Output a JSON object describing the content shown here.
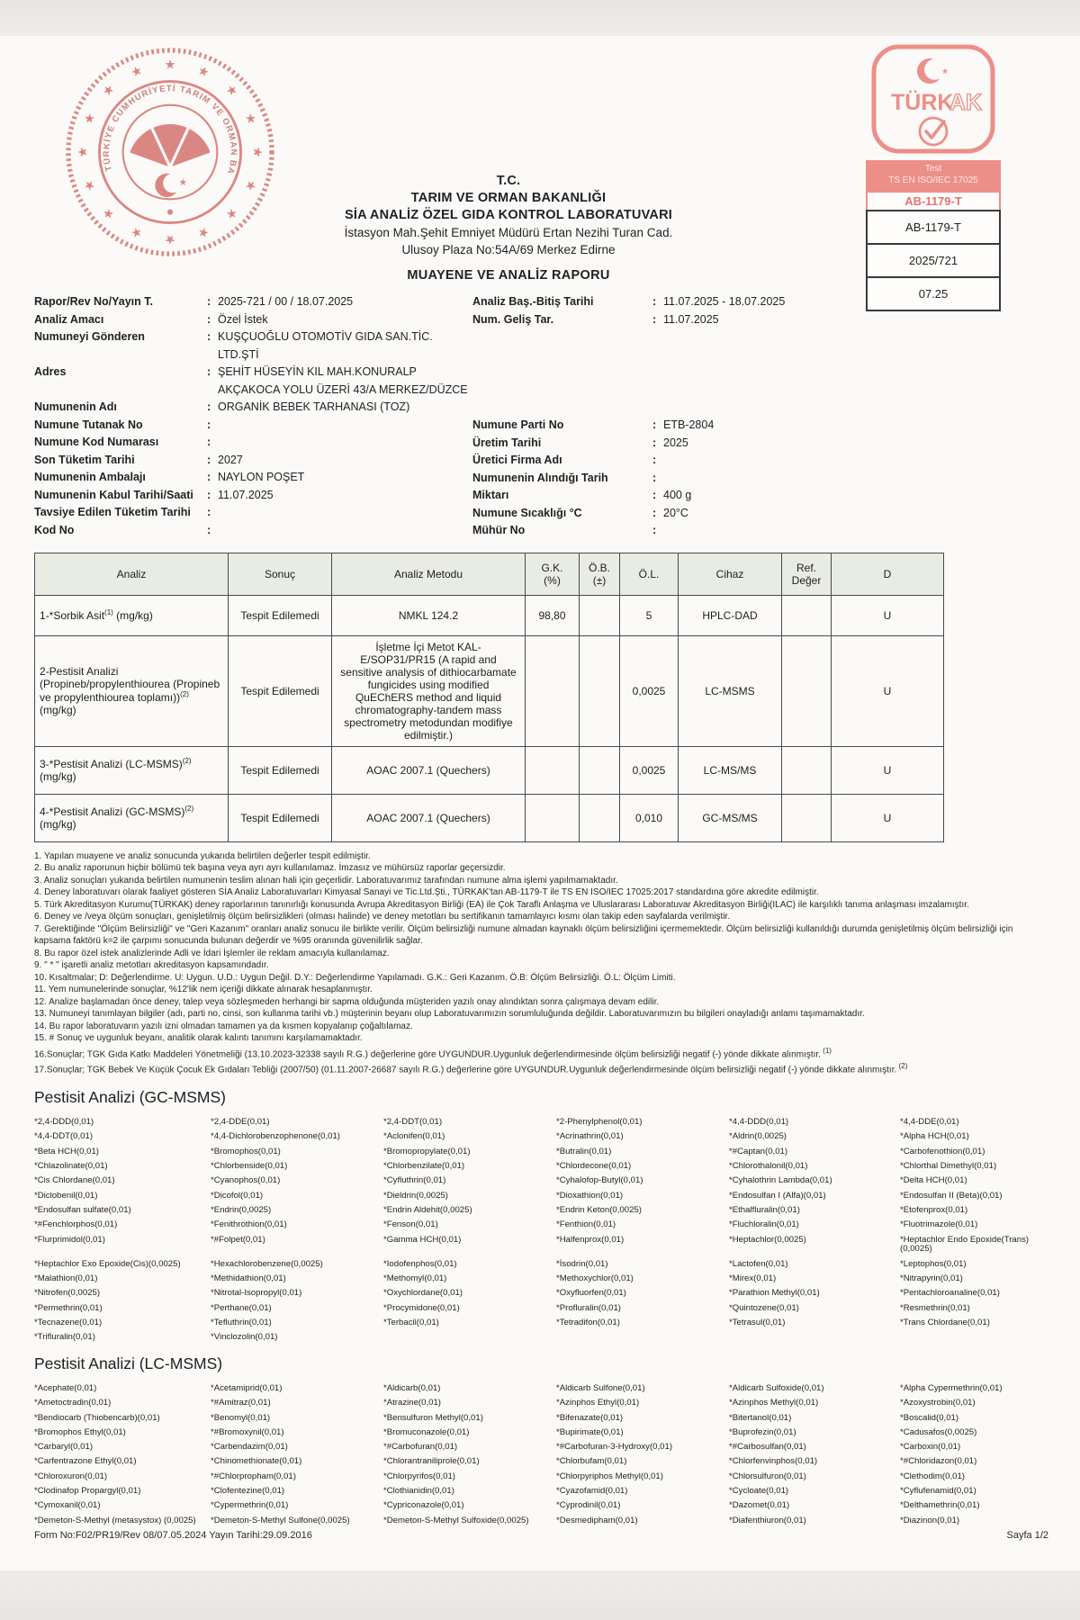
{
  "colors": {
    "stamp_red": "#da8783",
    "turkak_red": "#ec8f88",
    "text": "#222222",
    "table_header_bg": "#e9ece3"
  },
  "header": {
    "tc": "T.C.",
    "ministry": "TARIM VE ORMAN BAKANLIĞI",
    "laboratory": "SİA ANALİZ ÖZEL GIDA KONTROL LABORATUVARI",
    "address_line1": "İstasyon Mah.Şehit Emniyet Müdürü Ertan Nezihi Turan Cad.",
    "address_line2": "Ulusoy Plaza No:54A/69 Merkez Edirne",
    "report_title": "MUAYENE VE ANALİZ RAPORU",
    "emblem_text": "TÜRKİYE CUMHURİYETİ TARIM VE ORMAN BAKANLIĞI"
  },
  "stamp": {
    "wordmark_solid": "TÜRK",
    "wordmark_outline": "AK",
    "test_label": "Test",
    "standard_label": "TS EN ISO/IEC 17025",
    "accreditation_no": "AB-1179-T",
    "box_accreditation_no": "AB-1179-T",
    "box_report_no": "2025/721",
    "box_code": "07.25"
  },
  "info_left": [
    {
      "label": "Rapor/Rev No/Yayın T.",
      "value": "2025-721 / 00 / 18.07.2025"
    },
    {
      "label": "Analiz Amacı",
      "value": "Özel İstek"
    },
    {
      "label": "Numuneyi Gönderen",
      "value": "KUŞÇUOĞLU OTOMOTİV GIDA SAN.TİC. LTD.ŞTİ"
    },
    {
      "label": "Adres",
      "value": "ŞEHİT HÜSEYİN KIL MAH.KONURALP AKÇAKOCA YOLU ÜZERİ 43/A MERKEZ/DÜZCE"
    },
    {
      "label": "Numunenin Adı",
      "value": "ORGANİK BEBEK TARHANASI (TOZ)"
    },
    {
      "label": "Numune Tutanak No",
      "value": ""
    },
    {
      "label": "Numune Kod Numarası",
      "value": ""
    },
    {
      "label": "Son Tüketim Tarihi",
      "value": "2027"
    },
    {
      "label": "Numunenin Ambalajı",
      "value": "NAYLON POŞET"
    },
    {
      "label": "Numunenin Kabul Tarihi/Saati",
      "value": "11.07.2025"
    },
    {
      "label": "Tavsiye Edilen Tüketim Tarihi",
      "value": ""
    },
    {
      "label": "Kod No",
      "value": ""
    }
  ],
  "info_right_top": [
    {
      "label": "Analiz Baş.-Bitiş Tarihi",
      "value": "11.07.2025 - 18.07.2025"
    },
    {
      "label": "Num. Geliş Tar.",
      "value": "11.07.2025"
    }
  ],
  "info_right_bottom": [
    {
      "label": "Numune Parti No",
      "value": "ETB-2804"
    },
    {
      "label": "Üretim Tarihi",
      "value": "2025"
    },
    {
      "label": "Üretici Firma Adı",
      "value": ""
    },
    {
      "label": "Numunenin Alındığı Tarih",
      "value": ""
    },
    {
      "label": "Miktarı",
      "value": "400 g"
    },
    {
      "label": "Numune Sıcaklığı °C",
      "value": "20°C"
    },
    {
      "label": "Mühür No",
      "value": ""
    }
  ],
  "results_table": {
    "headers": [
      "Analiz",
      "Sonuç",
      "Analiz Metodu",
      "G.K.\n(%)",
      "Ö.B.(±)",
      "Ö.L.",
      "Cihaz",
      "Ref.\nDeğer",
      "D"
    ],
    "rows": [
      {
        "name": "1-*Sorbik Asit",
        "sup": "(1)",
        "unit": "(mg/kg)",
        "sonuc": "Tespit Edilemedi",
        "metot": "NMKL 124.2",
        "gk": "98,80",
        "ob": "",
        "ol": "5",
        "cihaz": "HPLC-DAD",
        "ref": "",
        "d": "U",
        "cls": "r1"
      },
      {
        "name": "2-Pestisit Analizi (Propineb/propylenthiourea (Propineb ve propylenthiourea toplamı))",
        "sup": "(2)",
        "unit": "(mg/kg)",
        "sonuc": "Tespit Edilemedi",
        "metot": "İşletme İçi Metot KAL-E/SOP31/PR15 (A rapid and sensitive analysis of dithiocarbamate fungicides using modified QuEChERS method and liquid chromatography-tandem mass spectrometry metodundan modifiye edilmiştir.)",
        "gk": "",
        "ob": "",
        "ol": "0,0025",
        "cihaz": "LC-MSMS",
        "ref": "",
        "d": "U",
        "cls": "r2"
      },
      {
        "name": "3-*Pestisit Analizi (LC-MSMS)",
        "sup": "(2)",
        "unit": "(mg/kg)",
        "sonuc": "Tespit Edilemedi",
        "metot": "AOAC 2007.1 (Quechers)",
        "gk": "",
        "ob": "",
        "ol": "0,0025",
        "cihaz": "LC-MS/MS",
        "ref": "",
        "d": "U",
        "cls": "r3"
      },
      {
        "name": "4-*Pestisit Analizi (GC-MSMS)",
        "sup": "(2)",
        "unit": "(mg/kg)",
        "sonuc": "Tespit Edilemedi",
        "metot": "AOAC 2007.1 (Quechers)",
        "gk": "",
        "ob": "",
        "ol": "0,010",
        "cihaz": "GC-MS/MS",
        "ref": "",
        "d": "U",
        "cls": "r4"
      }
    ]
  },
  "notes": [
    {
      "text": "1. Yapılan muayene ve analiz sonucunda yukarıda belirtilen değerler tespit edilmiştir.",
      "sup": ""
    },
    {
      "text": "2. Bu analiz raporunun hiçbir bölümü tek başına veya ayrı ayrı kullanılamaz. İmzasız ve mühürsüz raporlar geçersizdir.",
      "sup": ""
    },
    {
      "text": "3. Analiz sonuçları yukarıda belirtilen numunenin teslim alınan hali için geçerlidir. Laboratuvarımız tarafından numune alma işlemi yapılmamaktadır.",
      "sup": ""
    },
    {
      "text": "4. Deney laboratuvarı olarak faaliyet gösteren SİA Analiz Laboratuvarları Kimyasal Sanayi ve Tic.Ltd.Şti., TÜRKAK'tan AB-1179-T ile TS EN ISO/IEC 17025:2017 standardına göre akredite edilmiştir.",
      "sup": ""
    },
    {
      "text": "5. Türk Akreditasyon Kurumu(TÜRKAK) deney raporlarının tanınırlığı konusunda Avrupa Akreditasyon Birliği (EA) ile Çok Taraflı Anlaşma ve Uluslararası Laboratuvar Akreditasyon Birliği(ILAC) ile karşılıklı tanıma anlaşması imzalamıştır.",
      "sup": ""
    },
    {
      "text": "6. Deney ve /veya ölçüm sonuçları, genişletilmiş ölçüm belirsizlikleri (olması halinde) ve deney metotları bu sertifikanın tamamlayıcı kısmı olan takip eden sayfalarda verilmiştir.",
      "sup": ""
    },
    {
      "text": "7. Gerektiğinde \"Ölçüm Belirsizliği\" ve \"Geri Kazanım\" oranları analiz sonucu ile birlikte verilir. Ölçüm belirsizliği numune almadan kaynaklı ölçüm belirsizliğini içermemektedir. Ölçüm belirsizliği kullanıldığı durumda genişletilmiş ölçüm belirsizliği için kapsama faktörü k=2 ile çarpımı sonucunda bulunan değerdir ve %95 oranında güvenilirlik sağlar.",
      "sup": ""
    },
    {
      "text": "8. Bu rapor özel istek analizlerinde Adli ve İdari İşlemler ile reklam amacıyla kullanılamaz.",
      "sup": ""
    },
    {
      "text": "9. \" * \" işaretli analiz metotları akreditasyon kapsamındadır.",
      "sup": ""
    },
    {
      "text": "10. Kısaltmalar; D: Değerlendirme. U: Uygun. U.D.: Uygun Değil. D.Y.: Değerlendirme Yapılamadı. G.K.: Geri Kazanım. Ö.B: Ölçüm Belirsizliği. Ö.L: Ölçüm Limiti.",
      "sup": ""
    },
    {
      "text": "11. Yem numunelerinde sonuçlar, %12'lik nem içeriği dikkate alınarak hesaplanmıştır.",
      "sup": ""
    },
    {
      "text": "12. Analize başlamadan önce deney, talep veya sözleşmeden herhangi bir sapma olduğunda müşteriden yazılı onay alındıktan sonra çalışmaya devam edilir.",
      "sup": ""
    },
    {
      "text": "13. Numuneyi tanımlayan bilgiler (adı, parti no, cinsi, son kullanma tarihi vb.) müşterinin beyanı olup Laboratuvarımızın sorumluluğunda değildir. Laboratuvarımızın bu bilgileri onayladığı anlamı taşımamaktadır.",
      "sup": ""
    },
    {
      "text": "14. Bu rapor laboratuvarın yazılı izni olmadan tamamen ya da kısmen kopyalanıp çoğaltılamaz.",
      "sup": ""
    },
    {
      "text": "15. # Sonuç ve uygunluk beyanı, analitik olarak kalıntı tanımını karşılamamaktadır.",
      "sup": ""
    },
    {
      "text": "16.Sonuçlar; TGK Gıda Katkı Maddeleri Yönetmeliği (13.10.2023-32338 sayılı R.G.) değerlerine göre UYGUNDUR.Uygunluk değerlendirmesinde ölçüm belirsizliği negatif (-) yönde dikkate alınmıştır.",
      "sup": "(1)"
    },
    {
      "text": "17.Sonuçlar; TGK Bebek Ve Küçük Çocuk Ek Gıdaları Tebliği (2007/50) (01.11.2007-26687 sayılı R.G.) değerlerine göre UYGUNDUR.Uygunluk değerlendirmesinde ölçüm belirsizliği negatif (-) yönde dikkate alınmıştır.",
      "sup": "(2)"
    }
  ],
  "gc": {
    "title": "Pestisit Analizi (GC-MSMS)",
    "items": [
      "*2,4-DDD(0,01)",
      "*2,4-DDE(0,01)",
      "*2,4-DDT(0,01)",
      "*2-Phenylphenol(0,01)",
      "*4,4-DDD(0,01)",
      "*4,4-DDE(0,01)",
      "*4,4-DDT(0,01)",
      "*4,4-Dichlorobenzophenone(0,01)",
      "*Aclonifen(0,01)",
      "*Acrinathrin(0,01)",
      "*Aldrin(0,0025)",
      "*Alpha HCH(0,01)",
      "*Beta HCH(0,01)",
      "*Bromophos(0,01)",
      "*Bromopropylate(0,01)",
      "*Butralin(0,01)",
      "*#Captan(0,01)",
      "*Carbofenothion(0,01)",
      "*Chlazolinate(0,01)",
      "*Chlorbenside(0,01)",
      "*Chlorbenzilate(0,01)",
      "*Chlordecone(0,01)",
      "*Chlorothalonil(0,01)",
      "*Chlorthal Dimethyl(0,01)",
      "*Cis Chlordane(0,01)",
      "*Cyanophos(0,01)",
      "*Cyfluthrin(0,01)",
      "*Cyhalofop-Butyl(0,01)",
      "*Cyhalothrin Lambda(0,01)",
      "*Delta HCH(0,01)",
      "*Diclobenil(0,01)",
      "*Dicofol(0,01)",
      "*Dieldrin(0,0025)",
      "*Dioxathion(0,01)",
      "*Endosulfan I (Alfa)(0,01)",
      "*Endosulfan II (Beta)(0,01)",
      "*Endosulfan sulfate(0,01)",
      "*Endrin(0,0025)",
      "*Endrin Aldehit(0,0025)",
      "*Endrin Keton(0,0025)",
      "*Ethalfluralin(0,01)",
      "*Etofenprox(0,01)",
      "*#Fenchlorphos(0,01)",
      "*Fenithrothion(0,01)",
      "*Fenson(0,01)",
      "*Fenthion(0,01)",
      "*Fluchloralin(0,01)",
      "*Fluotrimazole(0,01)",
      "*Flurprimidol(0,01)",
      "*#Folpet(0,01)",
      "*Gamma HCH(0,01)",
      "*Halfenprox(0,01)",
      "*Heptachlor(0,0025)",
      "*Heptachlor Endo Epoxide(Trans) (0,0025)",
      "*Heptachlor Exo Epoxide(Cis)(0,0025)",
      "*Hexachlorobenzene(0,0025)",
      "*Iodofenphos(0,01)",
      "*İsodrin(0,01)",
      "*Lactofen(0,01)",
      "*Leptophos(0,01)",
      "*Malathion(0,01)",
      "*Methidathion(0,01)",
      "*Methomyl(0,01)",
      "*Methoxychlor(0,01)",
      "*Mirex(0,01)",
      "*Nitrapyrin(0,01)",
      "*Nitrofen(0,0025)",
      "*Nitrotal-Isopropyl(0,01)",
      "*Oxychlordane(0,01)",
      "*Oxyfluorfen(0,01)",
      "*Parathion Methyl(0,01)",
      "*Pentachloroanaline(0,01)",
      "*Permethrin(0,01)",
      "*Perthane(0,01)",
      "*Procymidone(0,01)",
      "*Profluralin(0,01)",
      "*Quintozene(0,01)",
      "*Resmethrin(0,01)",
      "*Tecnazene(0,01)",
      "*Tefluthrin(0,01)",
      "*Terbacil(0,01)",
      "*Tetradifon(0,01)",
      "*Tetrasul(0,01)",
      "*Trans Chlordane(0,01)",
      "*Trifluralin(0,01)",
      "*Vinclozolin(0,01)"
    ]
  },
  "lc": {
    "title": "Pestisit Analizi (LC-MSMS)",
    "items": [
      "*Acephate(0,01)",
      "*Acetamiprid(0,01)",
      "*Aldicarb(0,01)",
      "*Aldicarb Sulfone(0,01)",
      "*Aldicarb Sulfoxide(0,01)",
      "*Alpha Cypermethrin(0,01)",
      "*Ametoctradin(0,01)",
      "*#Amitraz(0,01)",
      "*Atrazine(0,01)",
      "*Azinphos Ethyl(0,01)",
      "*Azinphos Methyl(0,01)",
      "*Azoxystrobin(0,01)",
      "*Bendiocarb (Thiobencarb)(0,01)",
      "*Benomyl(0,01)",
      "*Bensulfuron Methyl(0,01)",
      "*Bifenazate(0,01)",
      "*Bitertanol(0,01)",
      "*Boscalid(0,01)",
      "*Bromophos Ethyl(0,01)",
      "*#Bromoxynil(0,01)",
      "*Bromuconazole(0,01)",
      "*Bupirimate(0,01)",
      "*Buprofezin(0,01)",
      "*Cadusafos(0,0025)",
      "*Carbaryl(0,01)",
      "*Carbendazim(0,01)",
      "*#Carbofuran(0,01)",
      "*#Carbofuran-3-Hydroxy(0,01)",
      "*#Carbosulfan(0,01)",
      "*Carboxin(0,01)",
      "*Carfentrazone Ethyl(0,01)",
      "*Chinomethionate(0,01)",
      "*Chlorantraniliprole(0,01)",
      "*Chlorbufam(0,01)",
      "*Chlorfenvinphos(0,01)",
      "*#Chloridazon(0,01)",
      "*Chloroxuron(0,01)",
      "*#Chlorpropham(0,01)",
      "*Chlorpyrifos(0,01)",
      "*Chlorpyriphos Methyl(0,01)",
      "*Chlorsulfuron(0,01)",
      "*Clethodim(0,01)",
      "*Clodinafop Propargyl(0,01)",
      "*Clofentezine(0,01)",
      "*Clothianidin(0,01)",
      "*Cyazofamid(0,01)",
      "*Cycloate(0,01)",
      "*Cyflufenamid(0,01)",
      "*Cymoxanil(0,01)",
      "*Cypermethrin(0,01)",
      "*Cypriconazole(0,01)",
      "*Cyprodinil(0,01)",
      "*Dazomet(0,01)",
      "*Delthamethrin(0,01)",
      "*Demeton-S-Methyl (metasystox) (0,0025)",
      "*Demeton-S-Methyl Sulfone(0,0025)",
      "*Demeton-S-Methyl Sulfoxide(0,0025)",
      "*Desmedipham(0,01)",
      "*Diafenthiuron(0,01)",
      "*Diazinon(0,01)"
    ]
  },
  "footer": {
    "left": "Form No:F02/PR19/Rev 08/07.05.2024 Yayın Tarihi:29.09.2016",
    "right": "Sayfa 1/2"
  }
}
